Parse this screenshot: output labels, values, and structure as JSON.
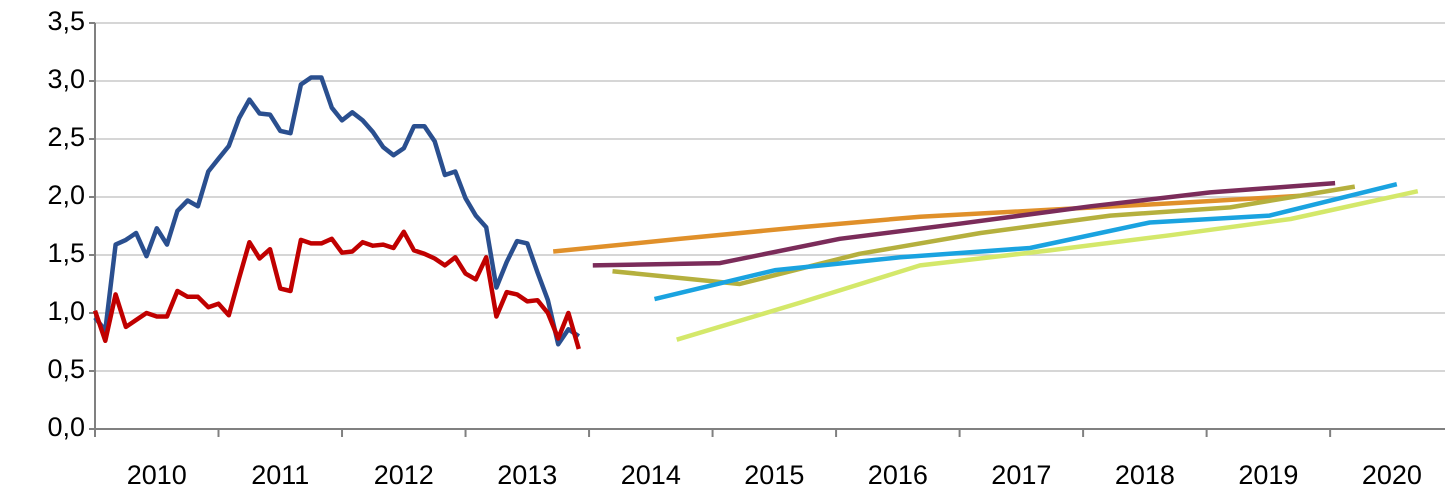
{
  "chart_data": {
    "type": "line",
    "xlim": [
      2010,
      2020.93
    ],
    "xticks": [
      2010,
      2011,
      2012,
      2013,
      2014,
      2015,
      2016,
      2017,
      2018,
      2019,
      2020
    ],
    "ylim": [
      0,
      3.5
    ],
    "yticks": [
      {
        "value": 0,
        "label": "0,0"
      },
      {
        "value": 0.5,
        "label": "0,5"
      },
      {
        "value": 1,
        "label": "1,0"
      },
      {
        "value": 1.5,
        "label": "1,5"
      },
      {
        "value": 2,
        "label": "2,0"
      },
      {
        "value": 2.5,
        "label": "2,5"
      },
      {
        "value": 3,
        "label": "3,0"
      },
      {
        "value": 3.5,
        "label": "3,5"
      }
    ],
    "grid": true,
    "series": [
      {
        "color": "#2a4f8f",
        "x": [
          2010,
          2010.083,
          2010.167,
          2010.25,
          2010.333,
          2010.417,
          2010.5,
          2010.583,
          2010.667,
          2010.75,
          2010.833,
          2010.917,
          2011,
          2011.083,
          2011.167,
          2011.25,
          2011.333,
          2011.417,
          2011.5,
          2011.583,
          2011.667,
          2011.75,
          2011.833,
          2011.917,
          2012,
          2012.083,
          2012.167,
          2012.25,
          2012.333,
          2012.417,
          2012.5,
          2012.583,
          2012.667,
          2012.75,
          2012.833,
          2012.917,
          2013,
          2013.083,
          2013.167,
          2013.25,
          2013.333,
          2013.417,
          2013.5,
          2013.583,
          2013.667,
          2013.75,
          2013.833,
          2013.917
        ],
        "values": [
          0.96,
          0.85,
          1.59,
          1.63,
          1.69,
          1.49,
          1.73,
          1.59,
          1.88,
          1.97,
          1.92,
          2.22,
          2.33,
          2.44,
          2.68,
          2.84,
          2.72,
          2.71,
          2.57,
          2.55,
          2.97,
          3.03,
          3.03,
          2.77,
          2.66,
          2.73,
          2.66,
          2.56,
          2.43,
          2.36,
          2.42,
          2.61,
          2.61,
          2.48,
          2.19,
          2.22,
          1.99,
          1.84,
          1.74,
          1.22,
          1.44,
          1.62,
          1.6,
          1.35,
          1.11,
          0.73,
          0.86,
          0.8
        ]
      },
      {
        "color": "#c00000",
        "x": [
          2010,
          2010.083,
          2010.167,
          2010.25,
          2010.333,
          2010.417,
          2010.5,
          2010.583,
          2010.667,
          2010.75,
          2010.833,
          2010.917,
          2011,
          2011.083,
          2011.167,
          2011.25,
          2011.333,
          2011.417,
          2011.5,
          2011.583,
          2011.667,
          2011.75,
          2011.833,
          2011.917,
          2012,
          2012.083,
          2012.167,
          2012.25,
          2012.333,
          2012.417,
          2012.5,
          2012.583,
          2012.667,
          2012.75,
          2012.833,
          2012.917,
          2013,
          2013.083,
          2013.167,
          2013.25,
          2013.333,
          2013.417,
          2013.5,
          2013.583,
          2013.667,
          2013.75,
          2013.833,
          2013.917
        ],
        "values": [
          1.02,
          0.76,
          1.16,
          0.88,
          0.94,
          1.0,
          0.97,
          0.97,
          1.19,
          1.14,
          1.14,
          1.05,
          1.08,
          0.98,
          1.3,
          1.61,
          1.47,
          1.55,
          1.21,
          1.19,
          1.63,
          1.6,
          1.6,
          1.64,
          1.52,
          1.53,
          1.61,
          1.58,
          1.59,
          1.56,
          1.7,
          1.54,
          1.51,
          1.47,
          1.41,
          1.48,
          1.34,
          1.29,
          1.48,
          0.97,
          1.18,
          1.16,
          1.1,
          1.11,
          1.0,
          0.78,
          1.0,
          0.69
        ]
      },
      {
        "color": "#e0902a",
        "x": [
          2013.71,
          2014.74,
          2015.71,
          2016.68,
          2017.73,
          2018.79,
          2019.76
        ],
        "values": [
          1.53,
          1.64,
          1.74,
          1.83,
          1.89,
          1.95,
          2.01
        ]
      },
      {
        "color": "#7b2c5a",
        "x": [
          2014.03,
          2015.06,
          2016.03,
          2017.0,
          2018.06,
          2019.03,
          2020.04
        ],
        "values": [
          1.41,
          1.43,
          1.64,
          1.77,
          1.92,
          2.04,
          2.12
        ]
      },
      {
        "color": "#b5b03e",
        "x": [
          2014.19,
          2015.22,
          2016.19,
          2017.17,
          2018.22,
          2019.19,
          2020.2
        ],
        "values": [
          1.36,
          1.25,
          1.51,
          1.69,
          1.84,
          1.91,
          2.09
        ]
      },
      {
        "color": "#1aa3e0",
        "x": [
          2014.53,
          2015.51,
          2016.52,
          2017.57,
          2018.54,
          2019.51,
          2020.54
        ],
        "values": [
          1.12,
          1.37,
          1.48,
          1.56,
          1.78,
          1.84,
          2.11
        ]
      },
      {
        "color": "#d4e86a",
        "x": [
          2014.71,
          2015.71,
          2016.68,
          2017.73,
          2018.7,
          2019.68,
          2020.71
        ],
        "values": [
          0.77,
          1.09,
          1.41,
          1.54,
          1.67,
          1.81,
          2.05
        ]
      }
    ]
  }
}
